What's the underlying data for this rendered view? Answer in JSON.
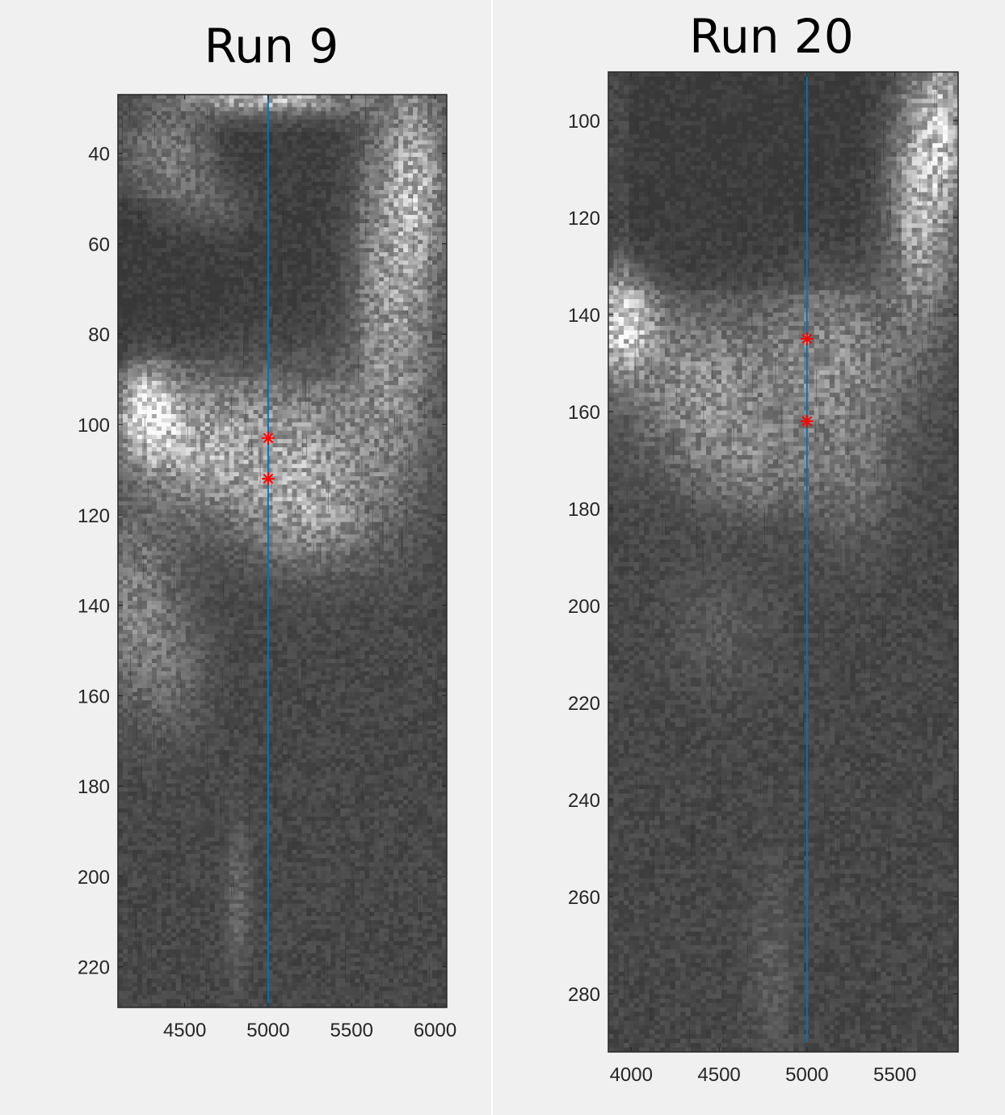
{
  "chart_data": [
    {
      "type": "heatmap",
      "title": "Run 9",
      "xlabel": "",
      "ylabel": "",
      "xlim": [
        4100,
        6070
      ],
      "ylim": [
        27,
        229
      ],
      "y_reversed": true,
      "colormap": "gray",
      "x_ticks": [
        4500,
        5000,
        5500,
        6000
      ],
      "y_ticks": [
        40,
        60,
        80,
        100,
        120,
        140,
        160,
        180,
        200,
        220
      ],
      "series": [
        {
          "type": "line",
          "x": [
            5000,
            5000
          ],
          "y": [
            27,
            229
          ],
          "color": "#0072bd"
        },
        {
          "type": "scatter",
          "marker": "asterisk",
          "color": "#ff0000",
          "x": [
            5000,
            5000
          ],
          "y": [
            103,
            112
          ]
        }
      ]
    },
    {
      "type": "heatmap",
      "title": "Run 20",
      "xlabel": "",
      "ylabel": "",
      "xlim": [
        3870,
        5860
      ],
      "ylim": [
        90,
        292
      ],
      "y_reversed": true,
      "colormap": "gray",
      "x_ticks": [
        4000,
        4500,
        5000,
        5500
      ],
      "y_ticks": [
        100,
        120,
        140,
        160,
        180,
        200,
        220,
        240,
        260,
        280
      ],
      "series": [
        {
          "type": "line",
          "x": [
            5000,
            5000
          ],
          "y": [
            90,
            290
          ],
          "color": "#0072bd"
        },
        {
          "type": "scatter",
          "marker": "asterisk",
          "color": "#ff0000",
          "x": [
            5000,
            5000
          ],
          "y": [
            145,
            162
          ]
        }
      ]
    }
  ]
}
